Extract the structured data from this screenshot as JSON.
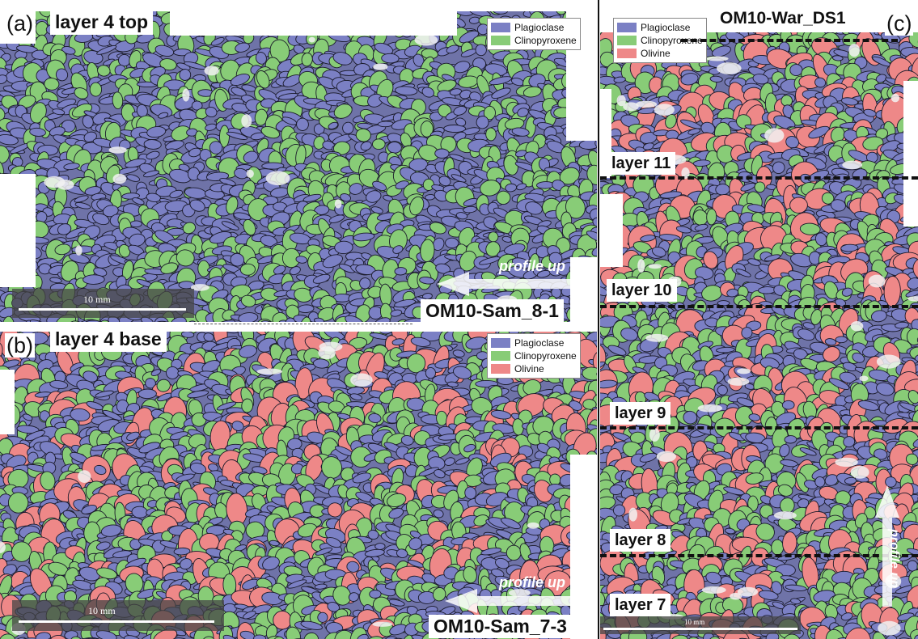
{
  "panels": {
    "a": {
      "letter": "(a)",
      "title": "layer 4  top",
      "sample": "OM10-Sam_8-1",
      "profile": "profile up",
      "scale": "10 mm",
      "legend": [
        {
          "name": "Plagioclase",
          "color": "#7b80c4"
        },
        {
          "name": "Clinopyroxene",
          "color": "#88cc77"
        }
      ]
    },
    "b": {
      "letter": "(b)",
      "title": "layer 4  base",
      "sample": "OM10-Sam_7-3",
      "profile": "profile up",
      "scale": "10 mm",
      "legend": [
        {
          "name": "Plagioclase",
          "color": "#7b80c4"
        },
        {
          "name": "Clinopyroxene",
          "color": "#88cc77"
        },
        {
          "name": "Olivine",
          "color": "#ee8888"
        }
      ]
    },
    "c": {
      "letter": "(c)",
      "sample": "OM10-War_DS1",
      "profile": "profile up",
      "scale": "10 mm",
      "layers": [
        "layer 11",
        "layer 10",
        "layer 9",
        "layer 8",
        "layer 7"
      ],
      "legend": [
        {
          "name": "Plagioclase",
          "color": "#7b80c4"
        },
        {
          "name": "Clinopyroxene",
          "color": "#88cc77"
        },
        {
          "name": "Olivine",
          "color": "#ee8888"
        }
      ]
    }
  },
  "colors": {
    "plagioclase": "#7b80c4",
    "clinopyroxene": "#88cc77",
    "olivine": "#ee8888",
    "background": "#6f73a8"
  }
}
